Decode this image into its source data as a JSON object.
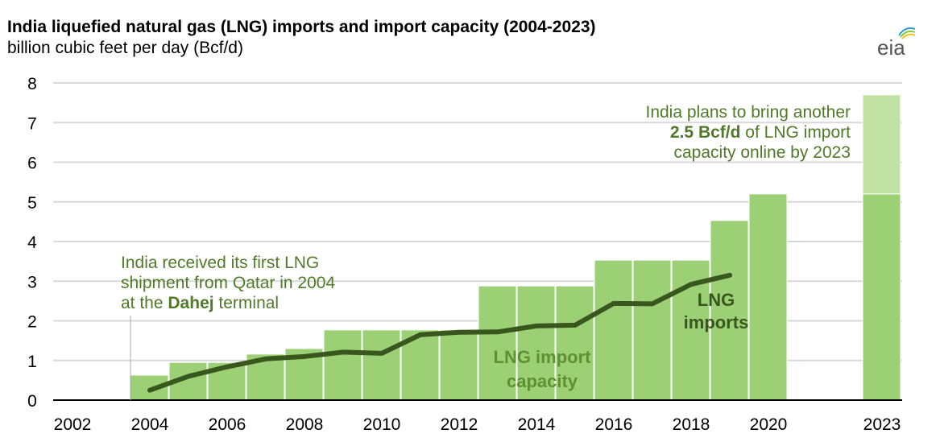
{
  "header": {
    "title": "India liquefied natural gas (LNG) imports and import capacity (2004-2023)",
    "subtitle": "billion cubic feet per day (Bcf/d)",
    "logo_text": "eia"
  },
  "colors": {
    "capacity": "#9bd174",
    "planned": "#c2e2a4",
    "imports": "#38561d",
    "annotation": "#4f7a28",
    "grid": "#d9d9d9"
  },
  "chart_data": {
    "type": "bar",
    "title": "India liquefied natural gas (LNG) imports and import capacity (2004-2023)",
    "ylabel": "billion cubic feet per day (Bcf/d)",
    "ylim": [
      0,
      8
    ],
    "yticks": [
      "0",
      "1",
      "2",
      "3",
      "4",
      "5",
      "6",
      "7",
      "8"
    ],
    "xticks": [
      "2002",
      "2004",
      "2006",
      "2008",
      "2010",
      "2012",
      "2014",
      "2016",
      "2018",
      "2020",
      "2023"
    ],
    "xtick_years": [
      2002,
      2004,
      2006,
      2008,
      2010,
      2012,
      2014,
      2016,
      2018,
      2020,
      2023
    ],
    "grid": true,
    "series": [
      {
        "name": "LNG import capacity",
        "type": "bar",
        "x": [
          2004,
          2005,
          2006,
          2007,
          2008,
          2009,
          2010,
          2011,
          2012,
          2013,
          2014,
          2015,
          2016,
          2017,
          2018,
          2019,
          2020,
          2023
        ],
        "values": [
          0.63,
          0.95,
          0.95,
          1.16,
          1.3,
          1.77,
          1.77,
          1.77,
          1.77,
          2.88,
          2.88,
          2.88,
          3.53,
          3.53,
          3.53,
          4.53,
          5.2,
          5.2
        ]
      },
      {
        "name": "Planned additional capacity",
        "type": "bar-stack",
        "x": [
          2023
        ],
        "values": [
          2.5
        ]
      },
      {
        "name": "LNG imports",
        "type": "line",
        "x": [
          2004,
          2005,
          2006,
          2007,
          2008,
          2009,
          2010,
          2011,
          2012,
          2013,
          2014,
          2015,
          2016,
          2017,
          2018,
          2019
        ],
        "values": [
          0.25,
          0.6,
          0.84,
          1.04,
          1.1,
          1.21,
          1.18,
          1.65,
          1.71,
          1.72,
          1.87,
          1.89,
          2.44,
          2.43,
          2.92,
          3.15
        ]
      }
    ],
    "annotations": {
      "first_shipment": [
        "India received its first LNG",
        "shipment from Qatar in 2004",
        "at the ",
        "Dahej",
        " terminal"
      ],
      "plans": [
        "India plans to bring another",
        "2.5 Bcf/d",
        " of LNG import",
        "capacity online by 2023"
      ],
      "capacity_label": [
        "LNG import",
        "capacity"
      ],
      "imports_label": [
        "LNG",
        "imports"
      ]
    }
  }
}
